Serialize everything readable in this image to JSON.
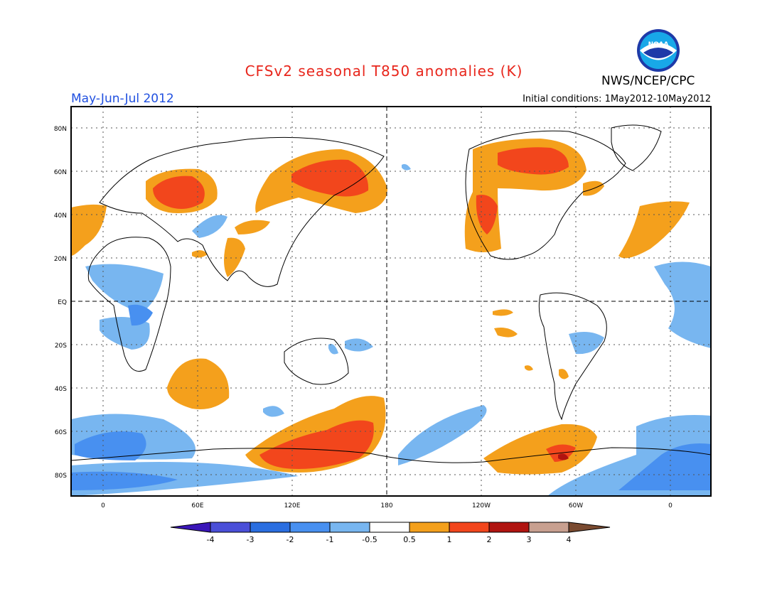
{
  "header": {
    "title": "CFSv2 seasonal T850 anomalies (K)",
    "organization": "NWS/NCEP/CPC",
    "season": "May-Jun-Jul 2012",
    "initial_conditions": "Initial conditions: 1May2012-10May2012",
    "logo_text": "NOAA"
  },
  "axes": {
    "lat_labels": [
      "80N",
      "60N",
      "40N",
      "20N",
      "EQ",
      "20S",
      "40S",
      "60S",
      "80S"
    ],
    "lon_labels": [
      "0",
      "60E",
      "120E",
      "180",
      "120W",
      "60W",
      "0"
    ]
  },
  "colorbar": {
    "labels": [
      "-4",
      "-3",
      "-2",
      "-1",
      "-0.5",
      "0.5",
      "1",
      "2",
      "3",
      "4"
    ],
    "colors": [
      "#3a16b8",
      "#4a4fd8",
      "#2a6ee0",
      "#4890f0",
      "#78b6f0",
      "#ffffff",
      "#f4a01c",
      "#f2461c",
      "#b01410",
      "#c8a090",
      "#7a4a30"
    ]
  },
  "colors": {
    "title": "#e8261c",
    "season": "#1f4fe0",
    "warm1": "#f4a01c",
    "warm2": "#f2461c",
    "cool1": "#78b6f0",
    "cool2": "#4890f0"
  }
}
